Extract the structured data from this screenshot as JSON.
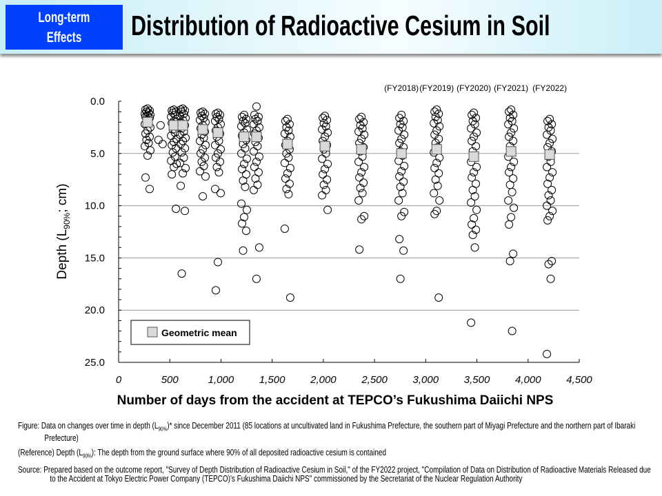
{
  "header": {
    "badge_line1": "Long-term",
    "badge_line2": "Effects",
    "title": "Distribution of Radioactive Cesium in Soil",
    "badge_color": "#0040ff"
  },
  "chart_data": {
    "type": "scatter",
    "xlabel": "Number of days from the accident at TEPCO’s Fukushima Daiichi NPS",
    "ylabel_main": "Depth (L",
    "ylabel_sub": "90%",
    "ylabel_end": "; cm)",
    "xlim": [
      0,
      4500
    ],
    "ylim": [
      0,
      25
    ],
    "y_inverted": true,
    "x_ticks": [
      "0",
      "500",
      "1,000",
      "1,500",
      "2,000",
      "2,500",
      "3,000",
      "3,500",
      "4,000",
      "4,500"
    ],
    "x_tick_values": [
      0,
      500,
      1000,
      1500,
      2000,
      2500,
      3000,
      3500,
      4000,
      4500
    ],
    "y_ticks": [
      "0.0",
      "5.0",
      "10.0",
      "15.0",
      "20.0",
      "25.0"
    ],
    "y_tick_values": [
      0,
      5,
      10,
      15,
      20,
      25
    ],
    "grid": "horizontal",
    "legend": {
      "label": "Geometric mean",
      "placement": "bottom-left"
    },
    "annotations": [
      {
        "text": "(FY2018)",
        "day": 2763
      },
      {
        "text": "(FY2019)",
        "day": 3107
      },
      {
        "text": "(FY2020)",
        "day": 3470
      },
      {
        "text": "(FY2021)",
        "day": 3834
      },
      {
        "text": "(FY2022)",
        "day": 4211
      }
    ],
    "series": [
      {
        "day": 283,
        "geometric_mean": 2.0,
        "depths": [
          0.7,
          0.8,
          0.9,
          1.0,
          1.1,
          1.2,
          1.3,
          1.4,
          1.5,
          1.6,
          1.8,
          2.0,
          2.2,
          2.5,
          2.8,
          3.1,
          3.4,
          3.7,
          4.0,
          4.3,
          4.7,
          5.2,
          7.3,
          8.4
        ]
      },
      {
        "day": 410,
        "depths": [
          2.3,
          3.7,
          4.1
        ]
      },
      {
        "day": 540,
        "geometric_mean": 2.3,
        "depths": [
          0.8,
          0.9,
          1.0,
          1.1,
          1.3,
          1.5,
          1.7,
          1.9,
          2.1,
          2.4,
          2.7,
          3.0,
          3.3,
          3.6,
          3.9,
          4.2,
          4.5,
          4.9,
          5.3,
          5.7,
          6.0,
          6.3,
          7.0,
          10.3
        ]
      },
      {
        "day": 627,
        "geometric_mean": 2.3,
        "depths": [
          0.7,
          0.8,
          0.9,
          1.0,
          1.2,
          1.4,
          1.6,
          1.8,
          2.0,
          2.3,
          2.6,
          2.9,
          3.2,
          3.5,
          3.8,
          4.1,
          4.5,
          4.9,
          5.4,
          5.9,
          6.4,
          6.9,
          8.1,
          10.5,
          16.5
        ]
      },
      {
        "day": 822,
        "geometric_mean": 2.7,
        "depths": [
          1.0,
          1.1,
          1.2,
          1.4,
          1.6,
          1.8,
          2.0,
          2.3,
          2.6,
          2.9,
          3.2,
          3.5,
          3.8,
          4.2,
          4.6,
          5.0,
          5.4,
          5.8,
          6.2,
          6.7,
          7.2,
          9.1
        ]
      },
      {
        "day": 970,
        "geometric_mean": 3.0,
        "depths": [
          1.1,
          1.2,
          1.3,
          1.5,
          1.7,
          1.9,
          2.2,
          2.5,
          2.8,
          3.1,
          3.4,
          3.8,
          4.2,
          4.6,
          5.0,
          5.4,
          5.8,
          6.3,
          6.8,
          8.4,
          8.8,
          15.4,
          18.1
        ]
      },
      {
        "day": 1226,
        "geometric_mean": 3.4,
        "depths": [
          1.3,
          1.5,
          1.7,
          1.9,
          2.1,
          2.4,
          2.7,
          3.0,
          3.3,
          3.7,
          4.1,
          4.5,
          5.0,
          5.5,
          6.0,
          6.5,
          7.0,
          7.6,
          8.2,
          9.8,
          10.4,
          11.1,
          11.7,
          12.4,
          14.3
        ]
      },
      {
        "day": 1347,
        "geometric_mean": 3.4,
        "depths": [
          0.5,
          1.3,
          1.5,
          1.7,
          1.9,
          2.2,
          2.5,
          2.8,
          3.1,
          3.5,
          3.9,
          4.3,
          4.8,
          5.3,
          5.8,
          6.3,
          6.8,
          7.4,
          8.0,
          8.5,
          14.0,
          17.0
        ]
      },
      {
        "day": 1650,
        "geometric_mean": 4.1,
        "depths": [
          1.7,
          1.9,
          2.2,
          2.5,
          2.8,
          3.1,
          3.4,
          3.8,
          4.2,
          4.6,
          5.0,
          5.4,
          5.9,
          6.4,
          6.9,
          7.4,
          7.9,
          8.4,
          8.9,
          12.2,
          18.8
        ]
      },
      {
        "day": 2015,
        "geometric_mean": 4.3,
        "depths": [
          1.4,
          1.6,
          1.8,
          2.1,
          2.4,
          2.7,
          3.0,
          3.4,
          3.8,
          4.2,
          4.6,
          5.0,
          5.5,
          6.0,
          6.5,
          7.0,
          7.5,
          8.0,
          8.5,
          9.0,
          10.4
        ]
      },
      {
        "day": 2372,
        "geometric_mean": 4.6,
        "depths": [
          1.5,
          1.7,
          2.0,
          2.3,
          2.6,
          2.9,
          3.2,
          3.6,
          4.0,
          4.4,
          4.8,
          5.3,
          5.8,
          6.3,
          6.8,
          7.3,
          7.8,
          8.3,
          8.8,
          9.5,
          11.0,
          11.3,
          14.2
        ]
      },
      {
        "day": 2763,
        "geometric_mean": 5.0,
        "depths": [
          1.3,
          1.6,
          1.9,
          2.2,
          2.5,
          2.8,
          3.2,
          3.6,
          4.0,
          4.4,
          4.8,
          5.2,
          5.7,
          6.2,
          6.7,
          7.2,
          7.7,
          8.2,
          8.8,
          9.5,
          10.6,
          11.0,
          13.2,
          14.3,
          17.0
        ]
      },
      {
        "day": 3107,
        "geometric_mean": 4.6,
        "depths": [
          0.8,
          1.0,
          1.2,
          1.5,
          1.8,
          2.1,
          2.4,
          2.8,
          3.2,
          3.6,
          4.0,
          4.4,
          4.9,
          5.4,
          5.9,
          6.4,
          6.9,
          7.5,
          8.1,
          8.8,
          9.5,
          10.5,
          10.8,
          18.8
        ]
      },
      {
        "day": 3470,
        "geometric_mean": 5.3,
        "depths": [
          1.1,
          1.3,
          1.6,
          1.9,
          2.2,
          2.6,
          3.0,
          3.4,
          3.8,
          4.3,
          4.8,
          5.3,
          5.8,
          6.3,
          6.8,
          7.3,
          7.9,
          8.5,
          9.1,
          9.7,
          10.4,
          11.2,
          11.8,
          12.3,
          12.8,
          14.0,
          21.2
        ]
      },
      {
        "day": 3834,
        "geometric_mean": 4.8,
        "depths": [
          0.8,
          1.0,
          1.3,
          1.6,
          1.9,
          2.2,
          2.6,
          3.0,
          3.4,
          3.8,
          4.3,
          4.8,
          5.3,
          5.8,
          6.3,
          6.8,
          7.4,
          8.0,
          8.7,
          9.5,
          10.2,
          11.1,
          11.8,
          14.6,
          15.3,
          22.0
        ]
      },
      {
        "day": 4211,
        "geometric_mean": 5.1,
        "depths": [
          1.7,
          1.9,
          2.2,
          2.5,
          2.8,
          3.2,
          3.6,
          4.0,
          4.4,
          4.8,
          5.3,
          5.8,
          6.3,
          6.8,
          7.3,
          7.9,
          8.5,
          9.0,
          9.5,
          10.0,
          10.5,
          11.0,
          11.4,
          15.3,
          15.6,
          17.0,
          24.2
        ]
      }
    ]
  },
  "notes": {
    "figure_prefix": "Figure: Data on changes over time in depth (L",
    "figure_sub": "90%",
    "figure_rest": ")* since December 2011 (85 locations at uncultivated land in Fukushima Prefecture, the southern part of Miyagi Prefecture and the northern part of Ibaraki Prefecture)",
    "reference_prefix": "(Reference) Depth (L",
    "reference_sub": "90%",
    "reference_rest": "): The depth from the ground surface where 90% of all deposited radioactive cesium is contained",
    "source": "Source: Prepared based on the outcome report, \"Survey of Depth Distribution of Radioactive Cesium in Soil,\" of the FY2022 project, \"Compilation of Data on Distribution of Radioactive Materials Released due to the Accident at Tokyo Electric Power Company (TEPCO)'s Fukushima Daiichi NPS\" commissioned by the Secretariat of the Nuclear Regulation Authority"
  }
}
